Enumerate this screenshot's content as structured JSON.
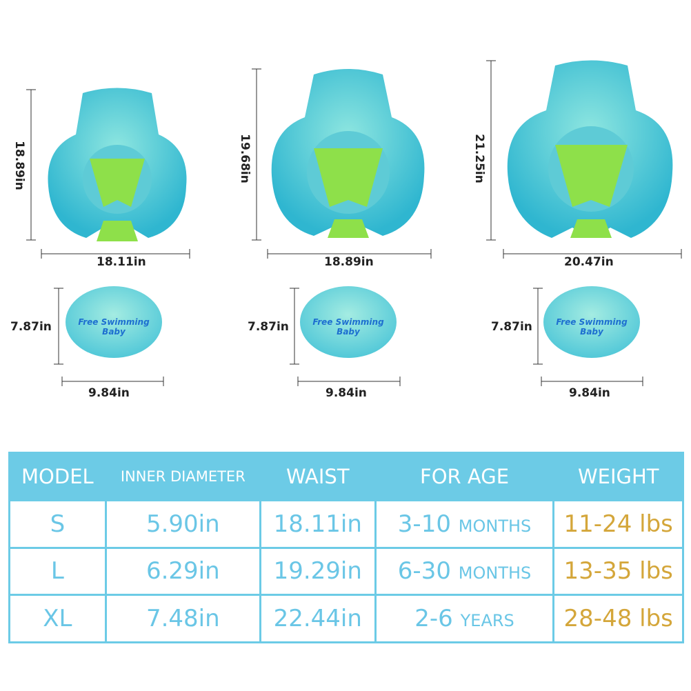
{
  "products": [
    {
      "height": "18.89in",
      "width": "18.11in",
      "pillow_height": "7.87in",
      "pillow_width": "9.84in"
    },
    {
      "height": "19.68in",
      "width": "18.89in",
      "pillow_height": "7.87in",
      "pillow_width": "9.84in"
    },
    {
      "height": "21.25in",
      "width": "20.47in",
      "pillow_height": "7.87in",
      "pillow_width": "9.84in"
    }
  ],
  "pillow_brand": "Free Swimming Baby",
  "table": {
    "headers": [
      "MODEL",
      "INNER DIAMETER",
      "WAIST",
      "FOR AGE",
      "WEIGHT"
    ],
    "rows": [
      {
        "model": "S",
        "inner": "5.90in",
        "waist": "18.11in",
        "age": "3-10",
        "age_unit": "MONTHS",
        "weight": "11-24 lbs"
      },
      {
        "model": "L",
        "inner": "6.29in",
        "waist": "19.29in",
        "age": "6-30",
        "age_unit": "MONTHS",
        "weight": "13-35 lbs"
      },
      {
        "model": "XL",
        "inner": "7.48in",
        "waist": "22.44in",
        "age": "2-6",
        "age_unit": "YEARS",
        "weight": "28-48 lbs"
      }
    ]
  },
  "colors": {
    "header": "#6ccbe6",
    "text": "#6ac6e6",
    "weight": "#d4a63a",
    "float": "#4fd0d0"
  }
}
